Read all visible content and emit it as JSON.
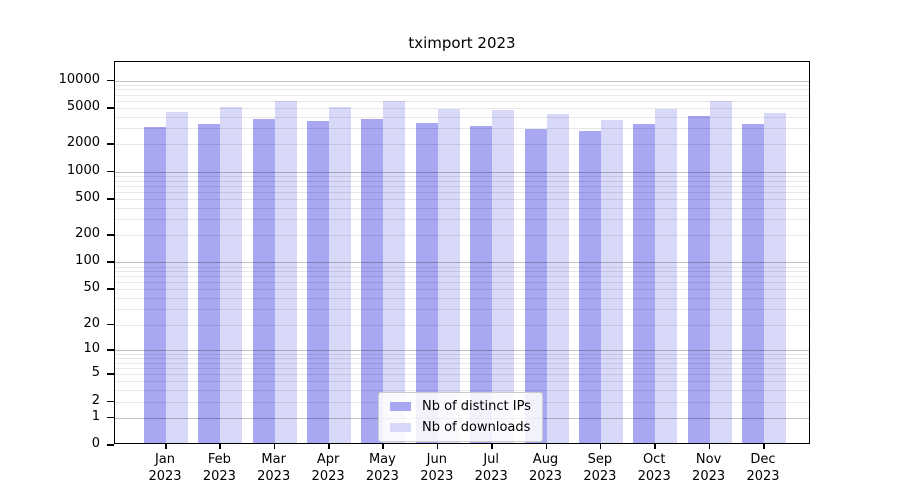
{
  "chart_data": {
    "type": "bar",
    "title": "tximport 2023",
    "categories": [
      "Jan",
      "Feb",
      "Mar",
      "Apr",
      "May",
      "Jun",
      "Jul",
      "Aug",
      "Sep",
      "Oct",
      "Nov",
      "Dec"
    ],
    "x_tick_line2": "2023",
    "series": [
      {
        "name": "Nb of distinct IPs",
        "color": "#a7a7f2",
        "values": [
          3080,
          3310,
          3840,
          3590,
          3800,
          3440,
          3160,
          2950,
          2790,
          3350,
          4140,
          3380
        ]
      },
      {
        "name": "Nb of downloads",
        "color": "#d8d8f9",
        "values": [
          4510,
          5080,
          5930,
          5080,
          6040,
          4870,
          4720,
          4290,
          3720,
          4870,
          5970,
          4430
        ]
      }
    ],
    "y_ticks": [
      0,
      1,
      2,
      5,
      10,
      20,
      50,
      100,
      200,
      500,
      1000,
      2000,
      5000,
      10000
    ],
    "y_scale": "log10(1+x)",
    "ylim": [
      0,
      16000
    ],
    "xlabel": "",
    "ylabel": "",
    "grid": "horizontal, log minor + major",
    "legend_position": "lower center"
  },
  "colors": {
    "bar_ips": "#a7a7f2",
    "bar_downloads": "#d8d8f9",
    "grid_major": "#c2c2c2",
    "grid_minor": "#e9e9e9",
    "axis": "#000000",
    "legend_border": "#cccccc",
    "background": "#ffffff"
  }
}
